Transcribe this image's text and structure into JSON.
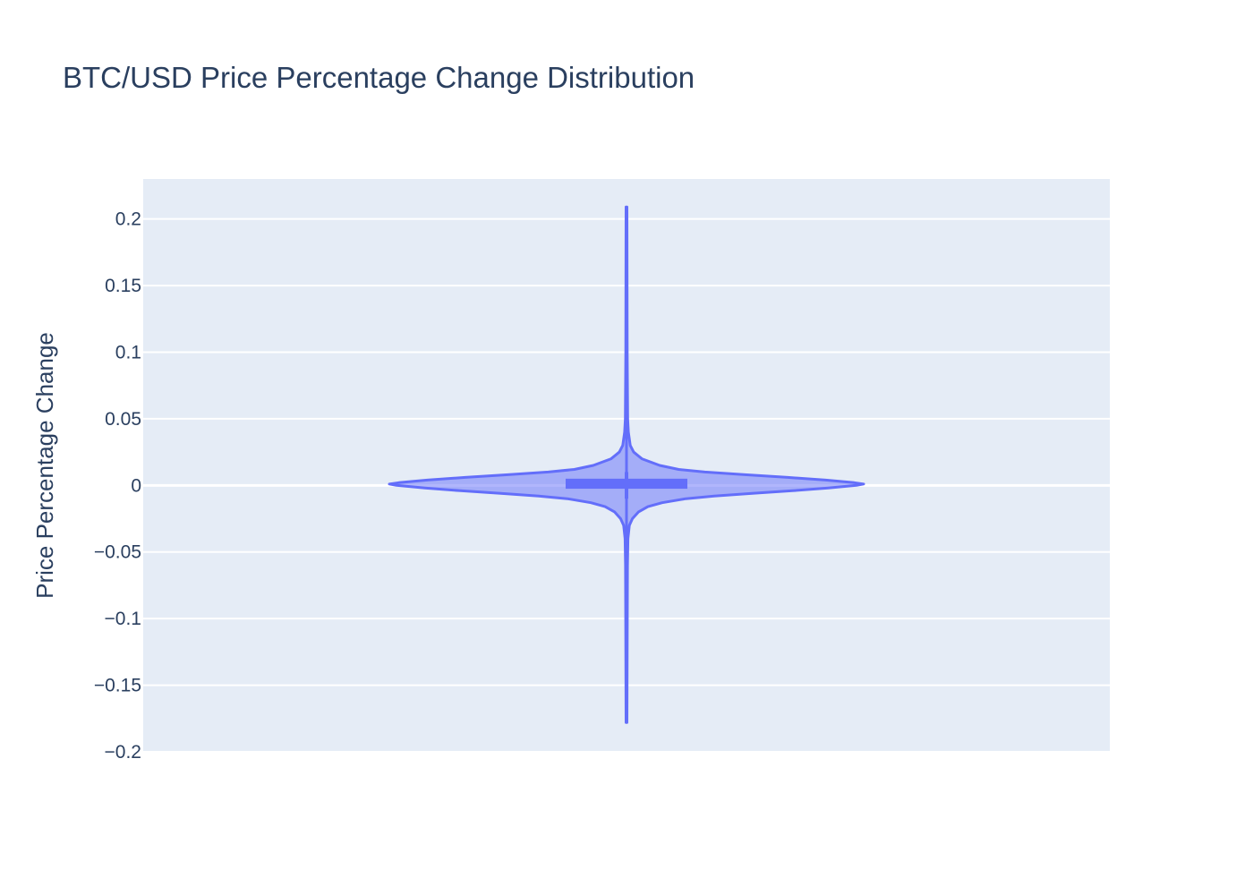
{
  "chart_data": {
    "type": "violin",
    "title": "BTC/USD Price Percentage Change Distribution",
    "xlabel": "",
    "ylabel": "Price Percentage Change",
    "ylim": [
      -0.2,
      0.23
    ],
    "yticks": [
      0.2,
      0.15,
      0.1,
      0.05,
      0,
      -0.05,
      -0.1,
      -0.15,
      -0.2
    ],
    "ytick_labels": [
      "0.2",
      "0.15",
      "0.1",
      "0.05",
      "0",
      "−0.05",
      "−0.1",
      "−0.15",
      "−0.2"
    ],
    "grid": true,
    "series": [
      {
        "min": -0.178,
        "max": 0.209,
        "q1": -0.0005,
        "median": 0.001,
        "q3": 0.003,
        "lower_fence": -0.01,
        "upper_fence": 0.01,
        "density_profile": [
          {
            "y": 0.209,
            "w": 0.002
          },
          {
            "y": 0.1,
            "w": 0.003
          },
          {
            "y": 0.05,
            "w": 0.005
          },
          {
            "y": 0.04,
            "w": 0.008
          },
          {
            "y": 0.03,
            "w": 0.016
          },
          {
            "y": 0.025,
            "w": 0.03
          },
          {
            "y": 0.02,
            "w": 0.065
          },
          {
            "y": 0.015,
            "w": 0.14
          },
          {
            "y": 0.012,
            "w": 0.22
          },
          {
            "y": 0.01,
            "w": 0.33
          },
          {
            "y": 0.008,
            "w": 0.5
          },
          {
            "y": 0.006,
            "w": 0.68
          },
          {
            "y": 0.004,
            "w": 0.84
          },
          {
            "y": 0.002,
            "w": 0.96
          },
          {
            "y": 0.001,
            "w": 1.0
          },
          {
            "y": 0.0,
            "w": 0.97
          },
          {
            "y": -0.002,
            "w": 0.85
          },
          {
            "y": -0.004,
            "w": 0.7
          },
          {
            "y": -0.006,
            "w": 0.53
          },
          {
            "y": -0.008,
            "w": 0.37
          },
          {
            "y": -0.01,
            "w": 0.25
          },
          {
            "y": -0.013,
            "w": 0.15
          },
          {
            "y": -0.016,
            "w": 0.09
          },
          {
            "y": -0.02,
            "w": 0.05
          },
          {
            "y": -0.025,
            "w": 0.025
          },
          {
            "y": -0.03,
            "w": 0.012
          },
          {
            "y": -0.04,
            "w": 0.006
          },
          {
            "y": -0.06,
            "w": 0.004
          },
          {
            "y": -0.178,
            "w": 0.002
          }
        ]
      }
    ],
    "colors": {
      "line": "#636efa",
      "fill": "rgba(99,110,250,0.5)",
      "plot_bg": "#e5ecf6",
      "grid": "#ffffff",
      "text": "#2a3f5f"
    }
  }
}
